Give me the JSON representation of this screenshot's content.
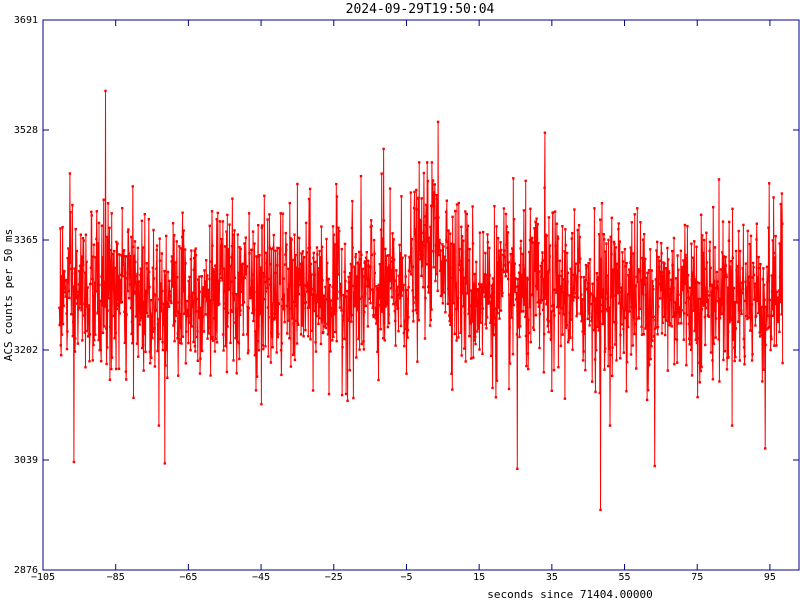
{
  "chart_data": {
    "type": "line",
    "title": "2024-09-29T19:50:04",
    "xlabel": "seconds since 71404.00000",
    "ylabel": "ACS counts per 50 ms",
    "xlim": [
      -105,
      103
    ],
    "ylim": [
      2876,
      3691
    ],
    "x_ticks": [
      -105,
      -85,
      -65,
      -45,
      -25,
      -5,
      15,
      35,
      55,
      75,
      95
    ],
    "x_tick_labels": [
      "−105",
      "−85",
      "−65",
      "−45",
      "−25",
      "−5",
      "15",
      "35",
      "55",
      "75",
      "95"
    ],
    "y_ticks": [
      2876,
      3039,
      3202,
      3365,
      3528,
      3691
    ],
    "y_tick_labels": [
      "2876",
      "3039",
      "3202",
      "3365",
      "3528",
      "3691"
    ],
    "grid": false,
    "legend": "none",
    "series": [
      {
        "color": "#ff0000",
        "sampling_interval_s": 0.05,
        "x_start": -100.5,
        "x_end": 98.5,
        "baseline": 3285,
        "noise_std": 60,
        "peak": {
          "x": 2.5,
          "height": 80,
          "width_s": 6
        },
        "outliers": [
          {
            "x": -87.8,
            "y": 3586
          },
          {
            "x": 3.7,
            "y": 3540
          },
          {
            "x": -11.3,
            "y": 3500
          },
          {
            "x": 33.1,
            "y": 3524
          },
          {
            "x": 48.4,
            "y": 2965
          },
          {
            "x": -71.5,
            "y": 3034
          },
          {
            "x": 63.3,
            "y": 3030
          },
          {
            "x": -96.5,
            "y": 3036
          },
          {
            "x": 25.5,
            "y": 3026
          },
          {
            "x": 93.7,
            "y": 3056
          }
        ]
      }
    ]
  }
}
